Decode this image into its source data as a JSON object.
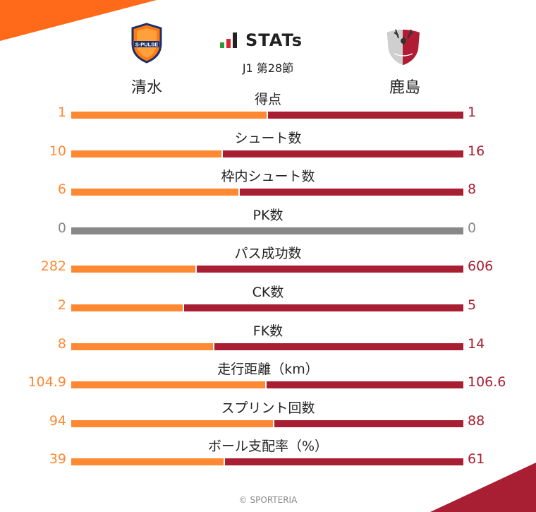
{
  "colors": {
    "home": "#ff8833",
    "away": "#a81e32",
    "neutral": "#888888",
    "accent_green": "#2e9a3b",
    "accent_red": "#d7262d"
  },
  "brand": {
    "title": "STATs"
  },
  "match": {
    "label": "J1 第28節"
  },
  "teams": {
    "home": {
      "name": "清水",
      "crest_text": "S-PULSE"
    },
    "away": {
      "name": "鹿島"
    }
  },
  "footer": {
    "copyright": "© SPORTERIA"
  },
  "chart_data": {
    "type": "bar",
    "orientation": "horizontal-diverging",
    "series": [
      {
        "name": "清水"
      },
      {
        "name": "鹿島"
      }
    ],
    "rows": [
      {
        "label": "得点",
        "home_label": "1",
        "away_label": "1",
        "home": 1,
        "away": 1
      },
      {
        "label": "シュート数",
        "home_label": "10",
        "away_label": "16",
        "home": 10,
        "away": 16
      },
      {
        "label": "枠内シュート数",
        "home_label": "6",
        "away_label": "8",
        "home": 6,
        "away": 8
      },
      {
        "label": "PK数",
        "home_label": "0",
        "away_label": "0",
        "home": 0,
        "away": 0
      },
      {
        "label": "パス成功数",
        "home_label": "282",
        "away_label": "606",
        "home": 282,
        "away": 606
      },
      {
        "label": "CK数",
        "home_label": "2",
        "away_label": "5",
        "home": 2,
        "away": 5
      },
      {
        "label": "FK数",
        "home_label": "8",
        "away_label": "14",
        "home": 8,
        "away": 14
      },
      {
        "label": "走行距離（km）",
        "home_label": "104.9",
        "away_label": "106.6",
        "home": 104.9,
        "away": 106.6
      },
      {
        "label": "スプリント回数",
        "home_label": "94",
        "away_label": "88",
        "home": 94,
        "away": 88
      },
      {
        "label": "ボール支配率（%）",
        "home_label": "39",
        "away_label": "61",
        "home": 39,
        "away": 61
      }
    ]
  }
}
